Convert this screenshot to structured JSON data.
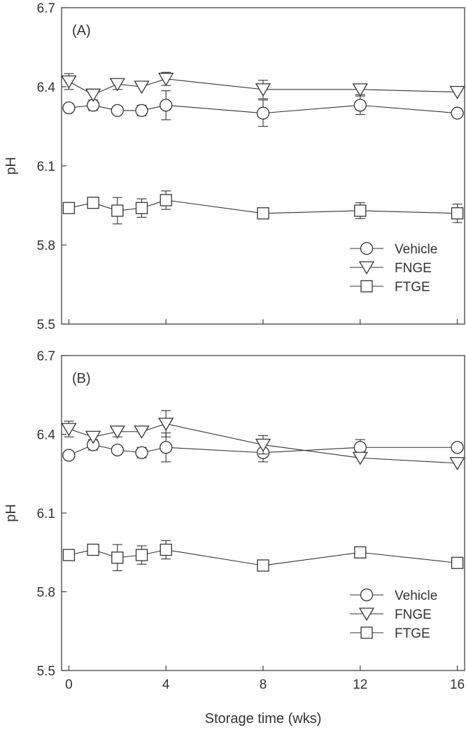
{
  "chart_data": {
    "type": "line",
    "xlabel": "Storage time (wks)",
    "x_ticks": [
      0,
      4,
      8,
      12,
      16
    ],
    "xlim": [
      -0.3,
      16.3
    ],
    "panels": [
      {
        "label": "(A)",
        "ylabel": "pH",
        "ylim": [
          5.5,
          6.7
        ],
        "y_ticks": [
          "5.5",
          "5.8",
          "6.1",
          "6.4",
          "6.7"
        ],
        "legend_position": "bottom-right",
        "series": [
          {
            "name": "Vehicle",
            "marker": "circle",
            "x": [
              0,
              1,
              2,
              3,
              4,
              8,
              12,
              16
            ],
            "y": [
              6.32,
              6.33,
              6.31,
              6.31,
              6.33,
              6.3,
              6.33,
              6.3
            ],
            "err": [
              0,
              0.02,
              0,
              0.02,
              0.055,
              0.05,
              0.035,
              0
            ]
          },
          {
            "name": "FNGE",
            "marker": "triangle-down",
            "x": [
              0,
              1,
              2,
              3,
              4,
              8,
              12,
              16
            ],
            "y": [
              6.42,
              6.37,
              6.41,
              6.4,
              6.43,
              6.39,
              6.39,
              6.38
            ],
            "err": [
              0.03,
              0,
              0.02,
              0,
              0.025,
              0.035,
              0.02,
              0
            ]
          },
          {
            "name": "FTGE",
            "marker": "square",
            "x": [
              0,
              1,
              2,
              3,
              4,
              8,
              12,
              16
            ],
            "y": [
              5.94,
              5.96,
              5.93,
              5.94,
              5.97,
              5.92,
              5.93,
              5.92
            ],
            "err": [
              0,
              0.02,
              0.05,
              0.035,
              0.035,
              0,
              0.03,
              0.035
            ]
          }
        ]
      },
      {
        "label": "(B)",
        "ylabel": "pH",
        "ylim": [
          5.5,
          6.7
        ],
        "y_ticks": [
          "5.5",
          "5.8",
          "6.1",
          "6.4",
          "6.7"
        ],
        "legend_position": "bottom-right",
        "series": [
          {
            "name": "Vehicle",
            "marker": "circle",
            "x": [
              0,
              1,
              2,
              3,
              4,
              8,
              12,
              16
            ],
            "y": [
              6.32,
              6.36,
              6.34,
              6.33,
              6.35,
              6.33,
              6.35,
              6.35
            ],
            "err": [
              0,
              0.02,
              0,
              0.02,
              0.055,
              0.035,
              0.03,
              0
            ]
          },
          {
            "name": "FNGE",
            "marker": "triangle-down",
            "x": [
              0,
              1,
              2,
              3,
              4,
              8,
              12,
              16
            ],
            "y": [
              6.42,
              6.39,
              6.41,
              6.41,
              6.44,
              6.36,
              6.31,
              6.29
            ],
            "err": [
              0.03,
              0,
              0.02,
              0,
              0.05,
              0.035,
              0,
              0
            ]
          },
          {
            "name": "FTGE",
            "marker": "square",
            "x": [
              0,
              1,
              2,
              3,
              4,
              8,
              12,
              16
            ],
            "y": [
              5.94,
              5.96,
              5.93,
              5.94,
              5.96,
              5.9,
              5.95,
              5.91
            ],
            "err": [
              0,
              0.015,
              0.05,
              0.035,
              0.035,
              0,
              0,
              0
            ]
          }
        ]
      }
    ]
  }
}
